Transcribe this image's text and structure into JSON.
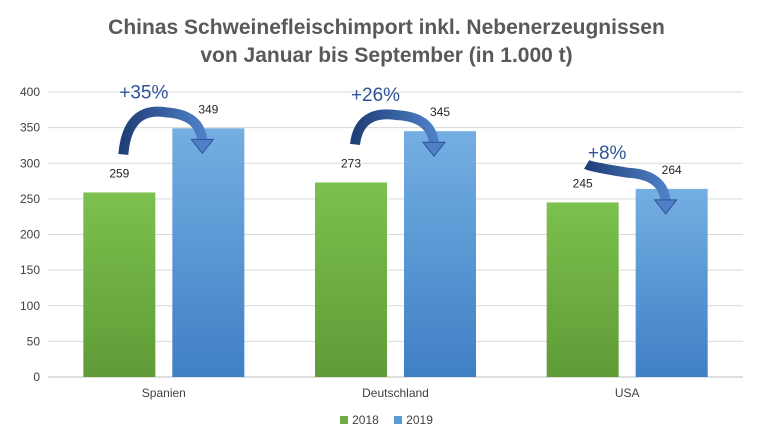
{
  "chart_data": {
    "type": "bar",
    "title_line1": "Chinas Schweinefleischimport inkl. Nebenerzeugnissen",
    "title_line2": "von Januar bis September (in 1.000 t)",
    "categories": [
      "Spanien",
      "Deutschland",
      "USA"
    ],
    "series": [
      {
        "name": "2018",
        "values": [
          259,
          273,
          245
        ],
        "color": "#70ad47"
      },
      {
        "name": "2019",
        "values": [
          349,
          345,
          264
        ],
        "color": "#5b9bd5"
      }
    ],
    "ylim": [
      0,
      400
    ],
    "yticks": [
      0,
      50,
      100,
      150,
      200,
      250,
      300,
      350,
      400
    ],
    "grid": true,
    "legend_position": "bottom",
    "annotations": [
      "+35%",
      "+26%",
      "+8%"
    ],
    "arrow_color": "#2f5597"
  }
}
